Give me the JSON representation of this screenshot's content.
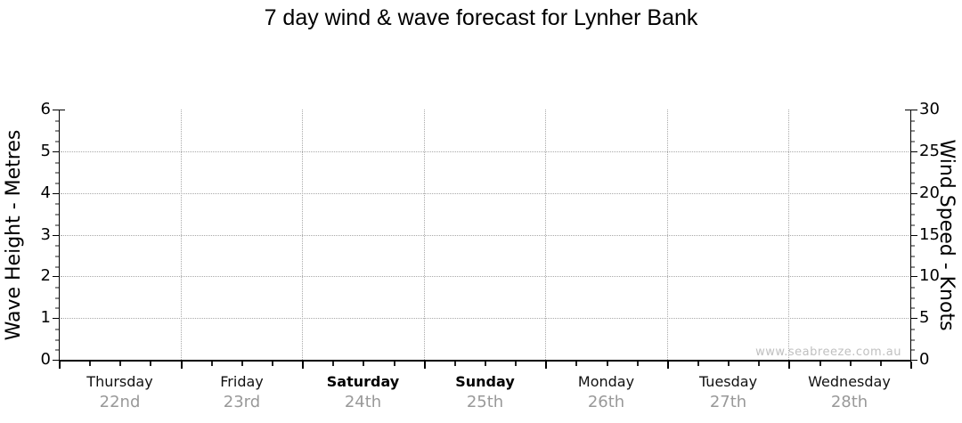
{
  "title": "7 day wind & wave forecast for Lynher Bank",
  "watermark": "www.seabreeze.com.au",
  "chart_data": {
    "type": "line",
    "title": "7 day wind & wave forecast for Lynher Bank",
    "left_axis": {
      "label": "Wave Height - Metres",
      "min": 0,
      "max": 6,
      "ticks": [
        0,
        1,
        2,
        3,
        4,
        5,
        6
      ],
      "minor_step": 0.25
    },
    "right_axis": {
      "label": "Wind Speed - Knots",
      "min": 0,
      "max": 30,
      "ticks": [
        0,
        5,
        10,
        15,
        20,
        25,
        30
      ],
      "minor_step": 1.25
    },
    "x_axis": {
      "days": [
        {
          "name": "Thursday",
          "date": "22nd",
          "weekend": false
        },
        {
          "name": "Friday",
          "date": "23rd",
          "weekend": false
        },
        {
          "name": "Saturday",
          "date": "24th",
          "weekend": true
        },
        {
          "name": "Sunday",
          "date": "25th",
          "weekend": true
        },
        {
          "name": "Monday",
          "date": "26th",
          "weekend": false
        },
        {
          "name": "Tuesday",
          "date": "27th",
          "weekend": false
        },
        {
          "name": "Wednesday",
          "date": "28th",
          "weekend": false
        }
      ],
      "minor_divisions_per_day": 4
    },
    "series": [],
    "grid": {
      "horizontal_at": [
        1,
        2,
        3,
        4,
        5
      ],
      "vertical_at_day_boundaries": true,
      "style": "dotted"
    },
    "legend": "none"
  },
  "colors": {
    "background": "#ffffff",
    "axis": "#000000",
    "grid": "#a9a9a9",
    "date_label": "#999999",
    "watermark": "#c0c0c0",
    "minor_tick": "#8c8c8c"
  }
}
